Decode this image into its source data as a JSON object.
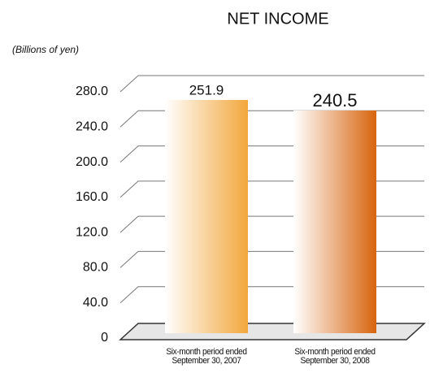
{
  "chart_data": {
    "type": "bar",
    "title": "NET INCOME",
    "y_label": "(Billions of yen)",
    "categories": [
      "Six-month period ended\nSeptember 30, 2007",
      "Six-month period ended\nSeptember 30, 2008"
    ],
    "values": [
      251.9,
      240.5
    ],
    "colors": [
      "#f2a73c",
      "#d8640e"
    ],
    "ylim": [
      0,
      280
    ],
    "yticks": [
      0,
      {
        "value": 40,
        "label": "40.0"
      },
      {
        "value": 80,
        "label": "80.0"
      },
      {
        "value": 120,
        "label": "120.0"
      },
      {
        "value": 160,
        "label": "160.0"
      },
      {
        "value": 200,
        "label": "200.0"
      },
      {
        "value": 240,
        "label": "240.0"
      },
      {
        "value": 280,
        "label": "280.0"
      }
    ],
    "grid": true
  }
}
